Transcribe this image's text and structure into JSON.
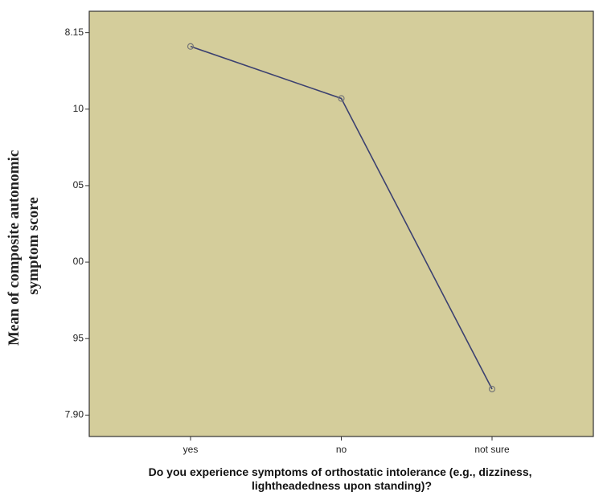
{
  "chart_data": {
    "type": "line",
    "y_label": [
      "Mean of composite autonomic",
      "symptom score"
    ],
    "x_label": [
      "Do you experience symptoms of orthostatic intolerance (e.g., dizziness,",
      "lightheadedness upon standing)?"
    ],
    "categories": [
      "yes",
      "no",
      "not sure"
    ],
    "series": [
      {
        "color": "#3c4170",
        "values": [
          8.141,
          8.107,
          7.917
        ]
      }
    ],
    "ylim": [
      7.886,
      8.164
    ],
    "yticks": [
      {
        "value": 7.9,
        "label": "7.90"
      },
      {
        "value": 7.95,
        "label": "95"
      },
      {
        "value": 8.0,
        "label": "00"
      },
      {
        "value": 8.05,
        "label": "05"
      },
      {
        "value": 8.1,
        "label": "10"
      },
      8.15
    ],
    "background": "#d4cd9b"
  }
}
